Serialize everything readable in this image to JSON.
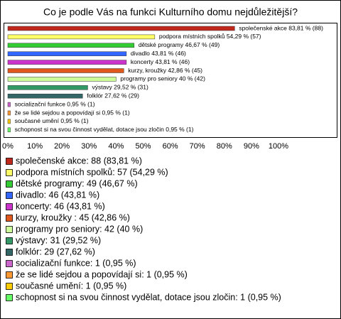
{
  "chart_data": {
    "type": "bar",
    "orientation": "horizontal",
    "title": "Co je podle Vás na funkci Kulturního domu nejdůležitější?",
    "categories": [
      "společenské akce",
      "podpora místních spolků",
      "dětské programy",
      "divadlo",
      "koncerty",
      "kurzy, kroužky",
      "programy pro seniory",
      "výstavy",
      "folklór",
      "socializační funkce",
      "že se lidé sejdou a popovídají si",
      "současné umění",
      "schopnost si na svou činnost vydělat, dotace jsou zločin"
    ],
    "values": [
      83.81,
      54.29,
      46.67,
      43.81,
      43.81,
      42.86,
      40,
      29.52,
      27.62,
      0.95,
      0.95,
      0.95,
      0.95
    ],
    "value_labels": [
      "společenské akce 83,81 % (88)",
      "podpora místních spolků 54,29 % (57)",
      "dětské programy 46,67 % (49)",
      "divadlo 43,81 % (46)",
      "koncerty 43,81 % (46)",
      "kurzy, kroužky 42,86 % (45)",
      "programy pro seniory 40 % (42)",
      "výstavy 29,52 % (31)",
      "folklór 27,62 % (29)",
      "socializační funkce 0,95 % (1)",
      "že se lidé sejdou a popovídají si 0,95 % (1)",
      "současné umění 0,95 % (1)",
      "schopnost si na svou činnost vydělat, dotace jsou zločin 0,95 % (1)"
    ],
    "legend_labels": [
      "společenské akce: 88 (83,81 %)",
      "podpora místních spolků: 57 (54,29 %)",
      "dětské programy: 49 (46,67 %)",
      "divadlo: 46 (43,81 %)",
      "koncerty: 46 (43,81 %)",
      "kurzy, kroužky : 45 (42,86 %)",
      "programy pro seniory: 42 (40 %)",
      "výstavy: 31 (29,52 %)",
      "folklór: 29 (27,62 %)",
      "socializační funkce: 1 (0,95 %)",
      "že se lidé sejdou a popovídají si: 1 (0,95 %)",
      "současné umění: 1 (0,95 %)",
      "schopnost si na svou činnost vydělat, dotace jsou zločin: 1 (0,95 %)"
    ],
    "colors": [
      "#c0281c",
      "#ffff66",
      "#33cc33",
      "#3366ff",
      "#cc33cc",
      "#e0581c",
      "#ccff99",
      "#339966",
      "#336666",
      "#cc66cc",
      "#ff9933",
      "#ffcc00",
      "#66ff66"
    ],
    "xlim": [
      0,
      100
    ],
    "xticks": [
      {
        "value": 0,
        "label": "0%"
      },
      {
        "value": 10,
        "label": "10%"
      },
      {
        "value": 20,
        "label": "20%"
      },
      {
        "value": 30,
        "label": "30%"
      },
      {
        "value": 40,
        "label": "40%"
      },
      {
        "value": 50,
        "label": "50%"
      },
      {
        "value": 60,
        "label": "60%"
      },
      {
        "value": 70,
        "label": "70%"
      },
      {
        "value": 80,
        "label": "80%"
      },
      {
        "value": 90,
        "label": "90%"
      },
      {
        "value": 100,
        "label": "100%"
      }
    ],
    "grid": false
  }
}
